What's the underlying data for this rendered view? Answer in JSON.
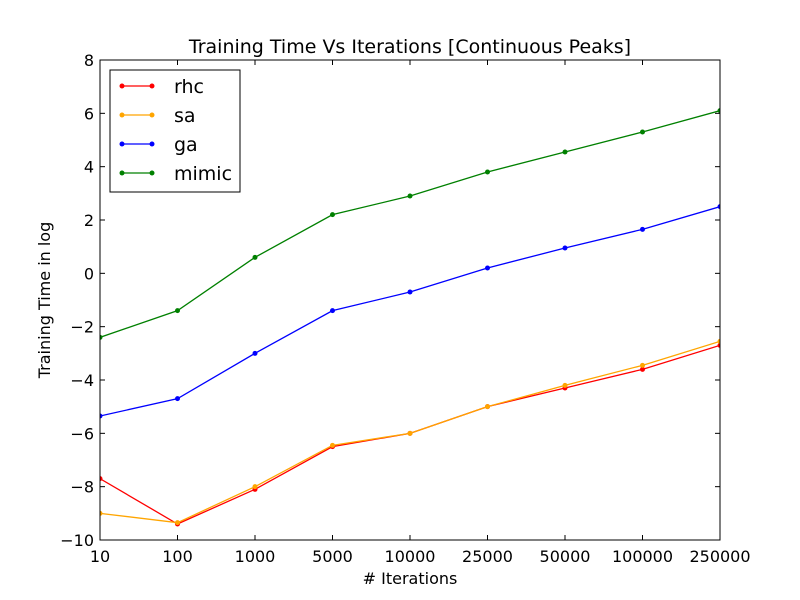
{
  "chart_data": {
    "type": "line",
    "title": "Training Time Vs Iterations [Continuous Peaks]",
    "xlabel": "# Iterations",
    "ylabel": "Training Time in log",
    "categories": [
      "10",
      "100",
      "1000",
      "5000",
      "10000",
      "25000",
      "50000",
      "100000",
      "250000"
    ],
    "ylim": [
      -10,
      8
    ],
    "yticks": [
      "8",
      "6",
      "4",
      "2",
      "0",
      "−2",
      "−4",
      "−6",
      "−8",
      "−10"
    ],
    "ytick_values": [
      8,
      6,
      4,
      2,
      0,
      -2,
      -4,
      -6,
      -8,
      -10
    ],
    "grid": false,
    "legend_position": "top-left",
    "series": [
      {
        "name": "rhc",
        "color": "#ff0000",
        "values": [
          -7.7,
          -9.4,
          -8.1,
          -6.5,
          -6.0,
          -5.0,
          -4.3,
          -3.6,
          -2.7
        ]
      },
      {
        "name": "sa",
        "color": "#ffa500",
        "values": [
          -9.0,
          -9.35,
          -8.0,
          -6.45,
          -6.0,
          -5.0,
          -4.2,
          -3.45,
          -2.55
        ]
      },
      {
        "name": "ga",
        "color": "#0000ff",
        "values": [
          -5.35,
          -4.7,
          -3.0,
          -1.4,
          -0.7,
          0.2,
          0.95,
          1.65,
          2.5
        ]
      },
      {
        "name": "mimic",
        "color": "#008000",
        "values": [
          -2.4,
          -1.4,
          0.6,
          2.2,
          2.9,
          3.8,
          4.55,
          5.3,
          6.1
        ]
      }
    ]
  }
}
